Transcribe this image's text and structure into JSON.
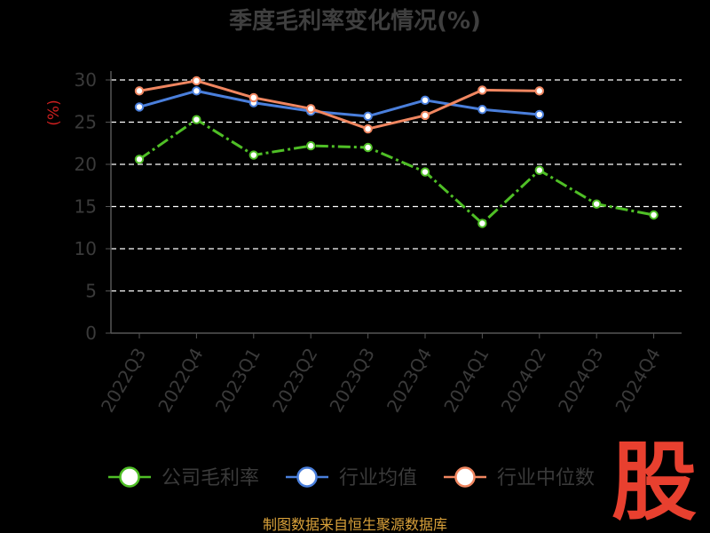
{
  "chart_data": {
    "type": "line",
    "title": "季度毛利率变化情况(%)",
    "ylabel": "(%)",
    "xlabel": "",
    "categories": [
      "2022Q3",
      "2022Q4",
      "2023Q1",
      "2023Q2",
      "2023Q3",
      "2023Q4",
      "2024Q1",
      "2024Q2",
      "2024Q3",
      "2024Q4"
    ],
    "ylim": [
      0,
      30
    ],
    "yticks": [
      0,
      5,
      10,
      15,
      20,
      25,
      30
    ],
    "grid": true,
    "legend_position": "bottom",
    "series": [
      {
        "name": "公司毛利率",
        "color": "#4fbf26",
        "dashed": true,
        "values": [
          20.6,
          25.3,
          21.1,
          22.2,
          22.0,
          19.1,
          13.0,
          19.3,
          15.3,
          14.0
        ]
      },
      {
        "name": "行业均值",
        "color": "#4a7fdc",
        "dashed": false,
        "values": [
          26.8,
          28.7,
          27.3,
          26.3,
          25.7,
          27.6,
          26.5,
          25.9,
          null,
          null
        ]
      },
      {
        "name": "行业中位数",
        "color": "#f08660",
        "dashed": false,
        "values": [
          28.7,
          29.9,
          27.9,
          26.6,
          24.2,
          25.8,
          28.8,
          28.7,
          null,
          null
        ]
      }
    ]
  },
  "source": "制图数据来自恒生聚源数据库",
  "watermark": "股"
}
